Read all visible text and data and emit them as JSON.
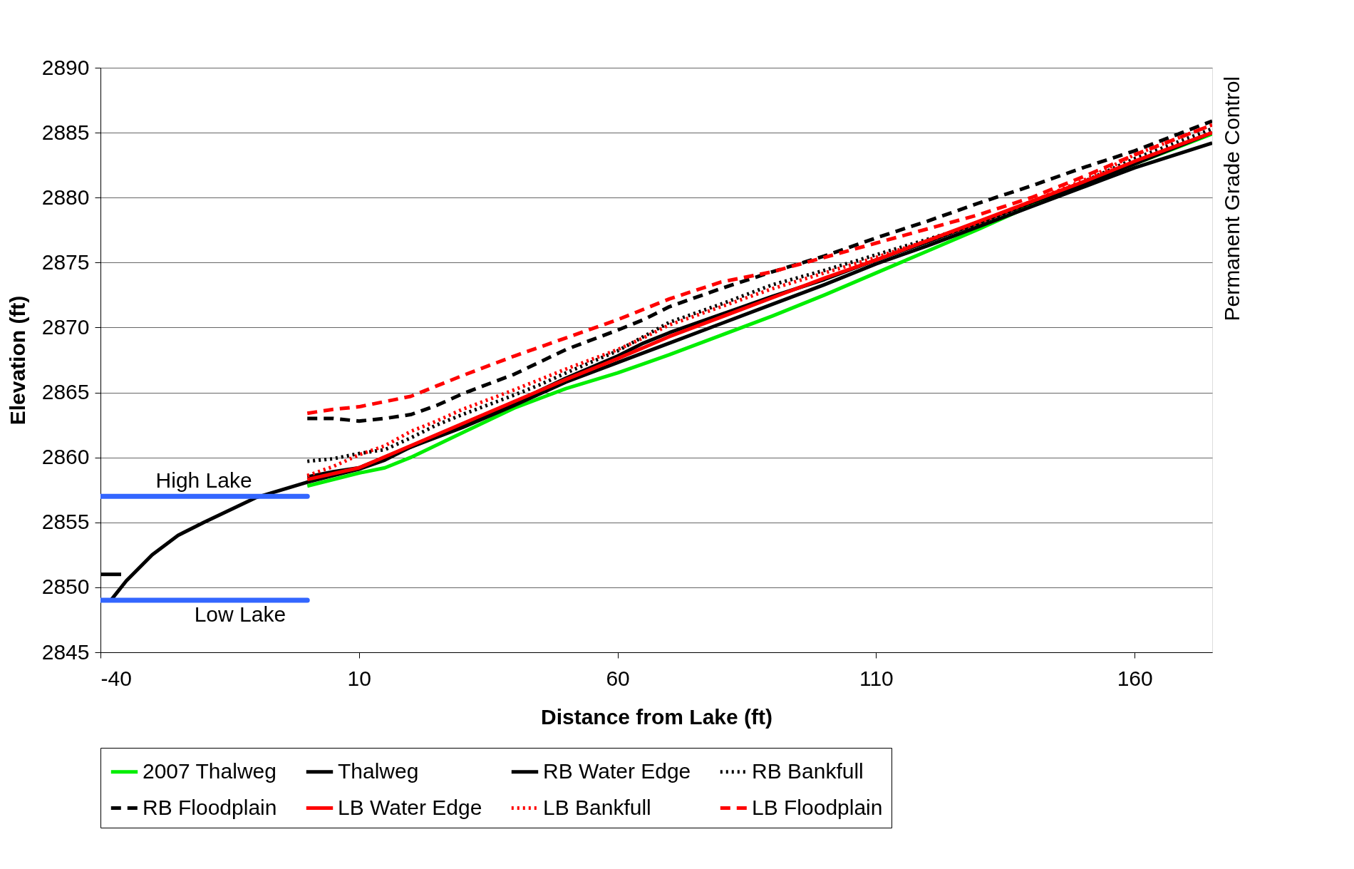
{
  "chart_data": {
    "type": "line",
    "xlabel": "Distance from Lake (ft)",
    "ylabel": "Elevation (ft)",
    "xlim": [
      -40,
      175
    ],
    "xticks": [
      -40,
      10,
      60,
      110,
      160
    ],
    "ylim": [
      2845,
      2890
    ],
    "yticks": [
      2845,
      2850,
      2855,
      2860,
      2865,
      2870,
      2875,
      2880,
      2885,
      2890
    ],
    "grid": "y",
    "legend": "bottom",
    "marker": "none",
    "series": [
      {
        "name": "2007 Thalweg",
        "color": "#00ee00",
        "line_style": "solid",
        "x": [
          0,
          10,
          15,
          20,
          30,
          40,
          50,
          60,
          70,
          80,
          90,
          100,
          110,
          120,
          130,
          140,
          150,
          160,
          175
        ],
        "values": [
          2857.8,
          2858.8,
          2859.2,
          2860,
          2861.9,
          2863.8,
          2865.3,
          2866.5,
          2867.9,
          2869.4,
          2870.9,
          2872.5,
          2874.2,
          2875.9,
          2877.6,
          2879.4,
          2881.0,
          2882.6,
          2884.9
        ]
      },
      {
        "name": "Thalweg",
        "color": "#000000",
        "line_style": "solid",
        "x": [
          -38,
          -35,
          -30,
          -25,
          -20,
          -10,
          0,
          5,
          10,
          15,
          20,
          30,
          40,
          50,
          60,
          70,
          80,
          90,
          100,
          110,
          120,
          130,
          140,
          150,
          160,
          175
        ],
        "values": [
          2849,
          2850.5,
          2852.5,
          2854,
          2855,
          2856.9,
          2858.1,
          2858.6,
          2859.1,
          2859.8,
          2860.8,
          2862.3,
          2864.0,
          2865.8,
          2867.3,
          2868.8,
          2870.3,
          2871.8,
          2873.3,
          2874.9,
          2876.3,
          2877.8,
          2879.3,
          2880.8,
          2882.3,
          2884.2
        ]
      },
      {
        "name": "RB Water Edge",
        "color": "#000000",
        "line_style": "solid",
        "x": [
          -40,
          -36,
          -20,
          0,
          5,
          10,
          20,
          30,
          40,
          50,
          60,
          65,
          70,
          80,
          90,
          100,
          110,
          120,
          130,
          140,
          150,
          160,
          175
        ],
        "values": [
          2851,
          2851,
          null,
          2858.5,
          2858.9,
          2859.2,
          2860.8,
          2862.5,
          2864.2,
          2866.1,
          2867.8,
          2868.8,
          2869.6,
          2871.0,
          2872.4,
          2873.7,
          2875.2,
          2876.6,
          2878.1,
          2879.6,
          2881.0,
          2882.6,
          2885.0
        ]
      },
      {
        "name": "RB Bankfull",
        "color": "#000000",
        "line_style": "dotted",
        "x": [
          0,
          5,
          10,
          15,
          20,
          25,
          30,
          40,
          45,
          50,
          60,
          65,
          70,
          80,
          90,
          100,
          110,
          120,
          130,
          140,
          150,
          160,
          175
        ],
        "values": [
          2859.7,
          2859.9,
          2860.3,
          2860.6,
          2861.5,
          2862.5,
          2863.3,
          2864.8,
          2865.6,
          2866.5,
          2868.2,
          2869.3,
          2870.4,
          2871.8,
          2873.3,
          2874.4,
          2875.6,
          2876.8,
          2878.0,
          2879.6,
          2881.2,
          2883.0,
          2885.3
        ]
      },
      {
        "name": "RB Floodplain",
        "color": "#000000",
        "line_style": "dashed",
        "x": [
          0,
          5,
          10,
          15,
          20,
          25,
          30,
          40,
          50,
          60,
          65,
          70,
          80,
          90,
          100,
          110,
          120,
          130,
          140,
          150,
          160,
          175
        ],
        "values": [
          2863.0,
          2863.0,
          2862.8,
          2863.0,
          2863.3,
          2864.0,
          2864.9,
          2866.4,
          2868.3,
          2869.8,
          2870.6,
          2871.6,
          2873.0,
          2874.3,
          2875.5,
          2876.9,
          2878.2,
          2879.6,
          2880.9,
          2882.3,
          2883.6,
          2885.9
        ]
      },
      {
        "name": "LB Water Edge",
        "color": "#ff0000",
        "line_style": "solid",
        "x": [
          0,
          10,
          20,
          30,
          40,
          50,
          60,
          70,
          80,
          90,
          100,
          110,
          120,
          130,
          140,
          150,
          160,
          175
        ],
        "values": [
          2858.3,
          2859.2,
          2860.9,
          2862.6,
          2864.3,
          2866.0,
          2867.6,
          2869.3,
          2870.8,
          2872.3,
          2873.8,
          2875.2,
          2876.7,
          2878.2,
          2879.7,
          2881.2,
          2882.8,
          2885.0
        ]
      },
      {
        "name": "LB Bankfull",
        "color": "#ff0000",
        "line_style": "dotted",
        "x": [
          0,
          5,
          10,
          15,
          20,
          25,
          30,
          40,
          45,
          50,
          60,
          65,
          70,
          80,
          90,
          100,
          110,
          120,
          130,
          140,
          150,
          160,
          175
        ],
        "values": [
          2858.6,
          2859.3,
          2860.2,
          2860.9,
          2862.0,
          2862.8,
          2863.7,
          2865.2,
          2866.0,
          2866.8,
          2868.3,
          2869.2,
          2870.2,
          2871.6,
          2873.0,
          2874.2,
          2875.4,
          2876.7,
          2878.1,
          2879.7,
          2881.3,
          2883.3,
          2885.6
        ]
      },
      {
        "name": "LB Floodplain",
        "color": "#ff0000",
        "line_style": "dashed",
        "x": [
          0,
          5,
          10,
          15,
          20,
          25,
          30,
          40,
          50,
          60,
          70,
          80,
          90,
          100,
          110,
          120,
          130,
          140,
          150,
          160,
          175
        ],
        "values": [
          2863.4,
          2863.7,
          2863.9,
          2864.3,
          2864.7,
          2865.5,
          2866.3,
          2867.8,
          2869.2,
          2870.6,
          2872.2,
          2873.5,
          2874.3,
          2875.4,
          2876.5,
          2877.6,
          2878.7,
          2880.0,
          2881.6,
          2883.3,
          2885.6
        ]
      },
      {
        "color": "#3366ff",
        "line_style": "solid",
        "x": [
          -40,
          0
        ],
        "values": [
          2857,
          2857
        ]
      },
      {
        "color": "#3366ff",
        "line_style": "solid",
        "x": [
          -40,
          0
        ],
        "values": [
          2849,
          2849
        ]
      }
    ],
    "annotations": [
      {
        "text": "High Lake",
        "x": -20,
        "y": 2857
      },
      {
        "text": "Low Lake",
        "x": -13,
        "y": 2849
      },
      "Permanent Grade Control"
    ]
  }
}
